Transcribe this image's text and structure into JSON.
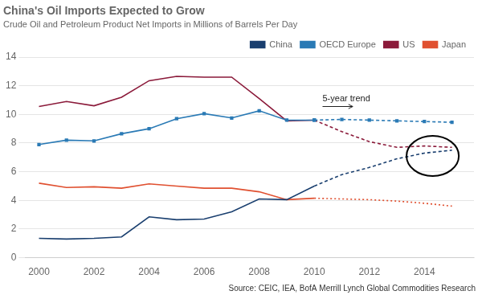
{
  "chart_data": {
    "type": "line",
    "title": "China's Oil Imports Expected to Grow",
    "subtitle": "Crude Oil and Petroleum Product Net Imports in Millions of Barrels Per Day",
    "source": "Source: CEIC, IEA, BofA Merrill Lynch Global Commodities Research",
    "xlim": [
      1999.5,
      2015.8
    ],
    "xticks": [
      2000,
      2002,
      2004,
      2006,
      2008,
      2010,
      2012,
      2014
    ],
    "ylim": [
      0,
      14
    ],
    "yticks": [
      0,
      2,
      4,
      6,
      8,
      10,
      12,
      14
    ],
    "grid": true,
    "legend": "upper right",
    "series": [
      {
        "name": "China",
        "color": "#1a3f6f",
        "line_style": "solid",
        "x": [
          2000,
          2001,
          2002,
          2003,
          2004,
          2005,
          2006,
          2007,
          2008,
          2009,
          2010
        ],
        "values": [
          1.35,
          1.3,
          1.35,
          1.45,
          2.85,
          2.65,
          2.7,
          3.2,
          4.1,
          4.05,
          5.0
        ]
      },
      {
        "name": "OECD Europe",
        "color": "#2a7ab5",
        "line_style": "solid",
        "marker": "square",
        "x": [
          2000,
          2001,
          2002,
          2003,
          2004,
          2005,
          2006,
          2007,
          2008,
          2009,
          2010
        ],
        "values": [
          7.9,
          8.2,
          8.15,
          8.65,
          9.0,
          9.7,
          10.05,
          9.75,
          10.25,
          9.6,
          9.6
        ]
      },
      {
        "name": "US",
        "color": "#8b1a3a",
        "line_style": "solid",
        "x": [
          2000,
          2001,
          2002,
          2003,
          2004,
          2005,
          2006,
          2007,
          2008,
          2009,
          2010
        ],
        "values": [
          10.55,
          10.9,
          10.6,
          11.2,
          12.35,
          12.65,
          12.6,
          12.6,
          11.1,
          9.55,
          9.6
        ]
      },
      {
        "name": "Japan",
        "color": "#e05030",
        "line_style": "solid",
        "x": [
          2000,
          2001,
          2002,
          2003,
          2004,
          2005,
          2006,
          2007,
          2008,
          2009,
          2010
        ],
        "values": [
          5.2,
          4.9,
          4.95,
          4.85,
          5.15,
          5.0,
          4.85,
          4.85,
          4.6,
          4.05,
          4.15
        ]
      },
      {
        "name": "China",
        "color": "#1a3f6f",
        "line_style": "dashed",
        "x": [
          2010,
          2011,
          2012,
          2013,
          2014,
          2015
        ],
        "values": [
          5.0,
          5.8,
          6.3,
          6.9,
          7.3,
          7.5
        ]
      },
      {
        "name": "OECD Europe",
        "color": "#2a7ab5",
        "line_style": "dashed",
        "marker": "square",
        "x": [
          2010,
          2011,
          2012,
          2013,
          2014,
          2015
        ],
        "values": [
          9.6,
          9.65,
          9.6,
          9.55,
          9.5,
          9.45
        ]
      },
      {
        "name": "US",
        "color": "#8b1a3a",
        "line_style": "dashed",
        "x": [
          2010,
          2011,
          2012,
          2013,
          2014,
          2015
        ],
        "values": [
          9.6,
          8.8,
          8.1,
          7.7,
          7.8,
          7.7
        ]
      },
      {
        "name": "Japan",
        "color": "#e05030",
        "line_style": "dotted",
        "x": [
          2010,
          2011,
          2012,
          2013,
          2014,
          2015
        ],
        "values": [
          4.15,
          4.1,
          4.05,
          3.95,
          3.8,
          3.6
        ]
      }
    ],
    "annotations": [
      {
        "text": "5-year trend",
        "x": 2010.3,
        "y": 10.55,
        "arrow_to": [
          2011.4,
          10.55
        ]
      }
    ],
    "ellipse": {
      "x": 2014.3,
      "y": 7.1,
      "width": 1.9,
      "height": 2.8
    }
  }
}
